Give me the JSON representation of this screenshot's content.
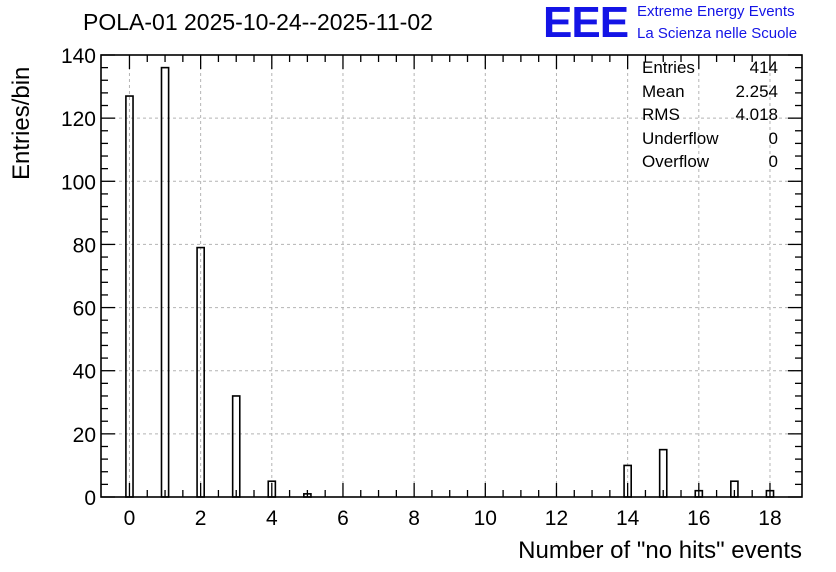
{
  "header": {
    "title": "POLA-01 2025-10-24--2025-11-02",
    "logo_text": "EEE",
    "logo_line1": "Extreme Energy Events",
    "logo_line2": "La Scienza nelle Scuole"
  },
  "stats": [
    {
      "label": "Entries",
      "value": "414"
    },
    {
      "label": "Mean",
      "value": "2.254"
    },
    {
      "label": "RMS",
      "value": "4.018"
    },
    {
      "label": "Underflow",
      "value": "0"
    },
    {
      "label": "Overflow",
      "value": "0"
    }
  ],
  "chart_data": {
    "type": "bar",
    "title": "POLA-01 2025-10-24--2025-11-02",
    "xlabel": "Number of \"no hits\" events",
    "ylabel": "Entries/bin",
    "xlim": [
      -0.8,
      18.9
    ],
    "ylim": [
      0,
      140
    ],
    "xticks": [
      0,
      2,
      4,
      6,
      8,
      10,
      12,
      14,
      16,
      18
    ],
    "yticks": [
      0,
      20,
      40,
      60,
      80,
      100,
      120,
      140
    ],
    "grid": true,
    "bin_width": 0.2,
    "categories": [
      0,
      1,
      2,
      3,
      4,
      5,
      14,
      15,
      16,
      17,
      18
    ],
    "values": [
      127,
      136,
      79,
      32,
      5,
      1,
      10,
      15,
      2,
      5,
      2
    ],
    "colors": {
      "line": "#000000",
      "grid": "#b4b4b4",
      "accent": "#1414e6"
    }
  }
}
